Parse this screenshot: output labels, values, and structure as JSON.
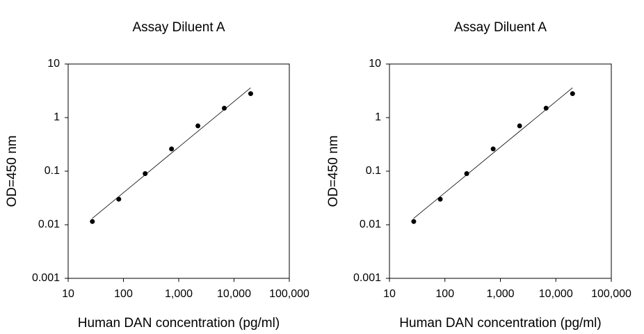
{
  "chart_data": [
    {
      "type": "scatter",
      "title": "Assay Diluent A",
      "x_label": "Human DAN concentration (pg/ml)",
      "y_label": "OD=450 nm",
      "xscale": "log",
      "yscale": "log",
      "color": "#000000",
      "x": [
        27.4,
        82.3,
        247,
        741,
        2222,
        6667,
        20000
      ],
      "values": [
        0.0115,
        0.03,
        0.09,
        0.26,
        0.7,
        1.5,
        2.8
      ],
      "fit": {
        "x": [
          27,
          20000
        ],
        "values": [
          0.013,
          3.6
        ]
      },
      "xlim": [
        10,
        100000
      ],
      "xticks": [
        10,
        100,
        {
          "value": 1000,
          "label": "1,000"
        },
        {
          "value": 10000,
          "label": "10,000"
        },
        {
          "value": 100000,
          "label": "100,000"
        }
      ],
      "ylim": [
        0.001,
        10
      ],
      "yticks": [
        0.001,
        0.01,
        0.1,
        1,
        10
      ]
    },
    {
      "type": "scatter",
      "title": "Assay Diluent A",
      "x_label": "Human DAN concentration (pg/ml)",
      "y_label": "OD=450 nm",
      "xscale": "log",
      "yscale": "log",
      "color": "#000000",
      "x": [
        27.4,
        82.3,
        247,
        741,
        2222,
        6667,
        20000
      ],
      "values": [
        0.0115,
        0.03,
        0.09,
        0.26,
        0.7,
        1.5,
        2.8
      ],
      "fit": {
        "x": [
          27,
          20000
        ],
        "values": [
          0.013,
          3.6
        ]
      },
      "xlim": [
        10,
        100000
      ],
      "xticks": [
        10,
        100,
        {
          "value": 1000,
          "label": "1,000"
        },
        {
          "value": 10000,
          "label": "10,000"
        },
        {
          "value": 100000,
          "label": "100,000"
        }
      ],
      "ylim": [
        0.001,
        10
      ],
      "yticks": [
        0.001,
        0.01,
        0.1,
        1,
        10
      ]
    }
  ]
}
